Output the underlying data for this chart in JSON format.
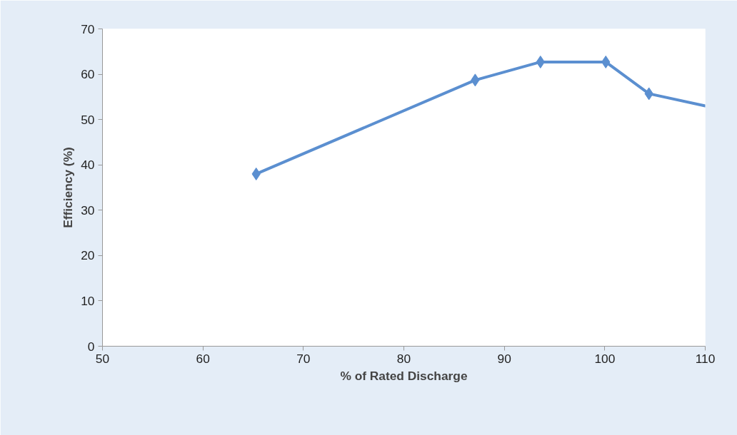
{
  "chart_data": {
    "type": "line",
    "xlabel": "% of Rated Discharge",
    "ylabel": "Efficiency (%)",
    "xlim": [
      50,
      110
    ],
    "xticks": [
      50,
      60,
      70,
      80,
      90,
      100,
      110
    ],
    "ylim": [
      0,
      70
    ],
    "yticks": [
      0,
      10,
      20,
      30,
      40,
      50,
      60,
      70
    ],
    "grid": false,
    "series": [
      {
        "color": "#5b8fd0",
        "marker": "diamond",
        "x": [
          65.3,
          87.1,
          93.6,
          100.1,
          104.4
        ],
        "values": [
          38,
          58.7,
          62.7,
          62.7,
          55.7
        ]
      },
      {
        "color": "#5b8fd0",
        "marker": "none",
        "x": [
          104.4,
          110
        ],
        "values": [
          55.7,
          53
        ]
      }
    ]
  }
}
